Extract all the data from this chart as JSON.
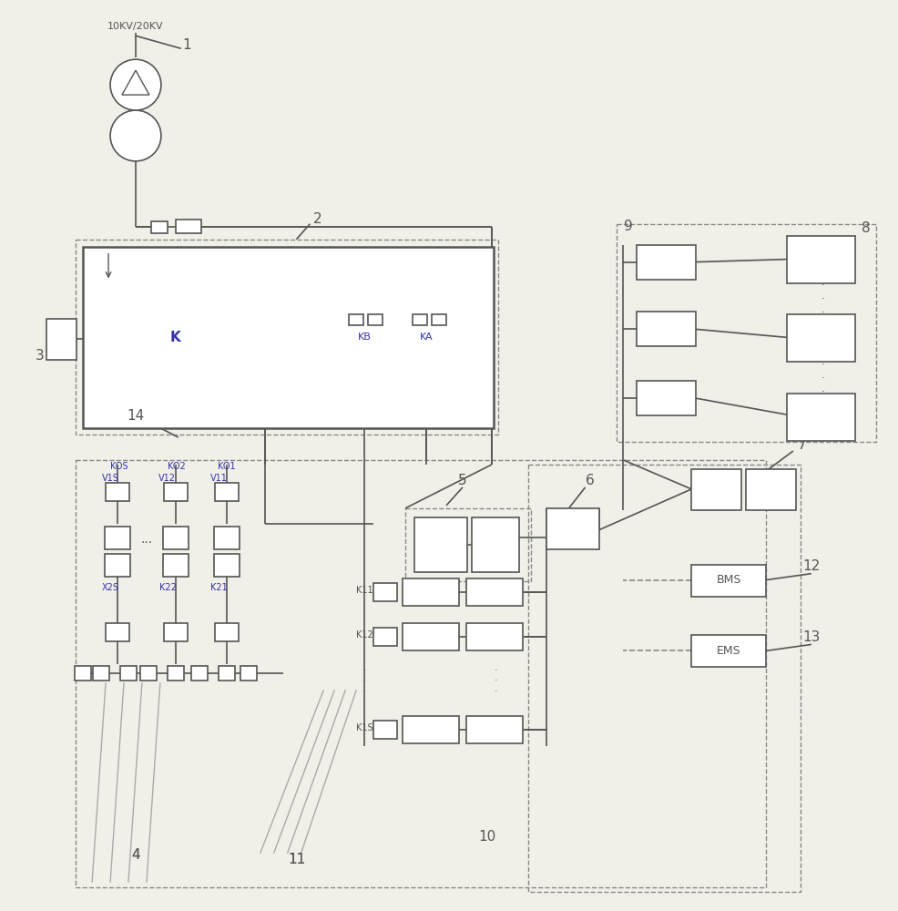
{
  "bg_color": "#f0efe8",
  "lc": "#555555",
  "bc": "#3333aa",
  "wf": "#ffffff",
  "fig_w": 9.86,
  "fig_h": 10.0,
  "dpi": 100,
  "voltage_label": "10KV/20KV",
  "KB": "KB",
  "KA": "KA",
  "K": "K",
  "KOS": "KOS",
  "KO2": "KO2",
  "KO1": "KO1",
  "V1S": "V1S",
  "V12": "V12",
  "V11": "V11",
  "X2S": "X2S",
  "K22": "K22",
  "K21": "K21",
  "K11": "K11",
  "K12": "K12",
  "K1S": "K1S",
  "BMS": "BMS",
  "EMS": "EMS",
  "n1": "1",
  "n2": "2",
  "n3": "3",
  "n4": "4",
  "n5": "5",
  "n6": "6",
  "n7": "7",
  "n8": "8",
  "n9": "9",
  "n10": "10",
  "n11": "11",
  "n12": "12",
  "n13": "13",
  "n14": "14"
}
